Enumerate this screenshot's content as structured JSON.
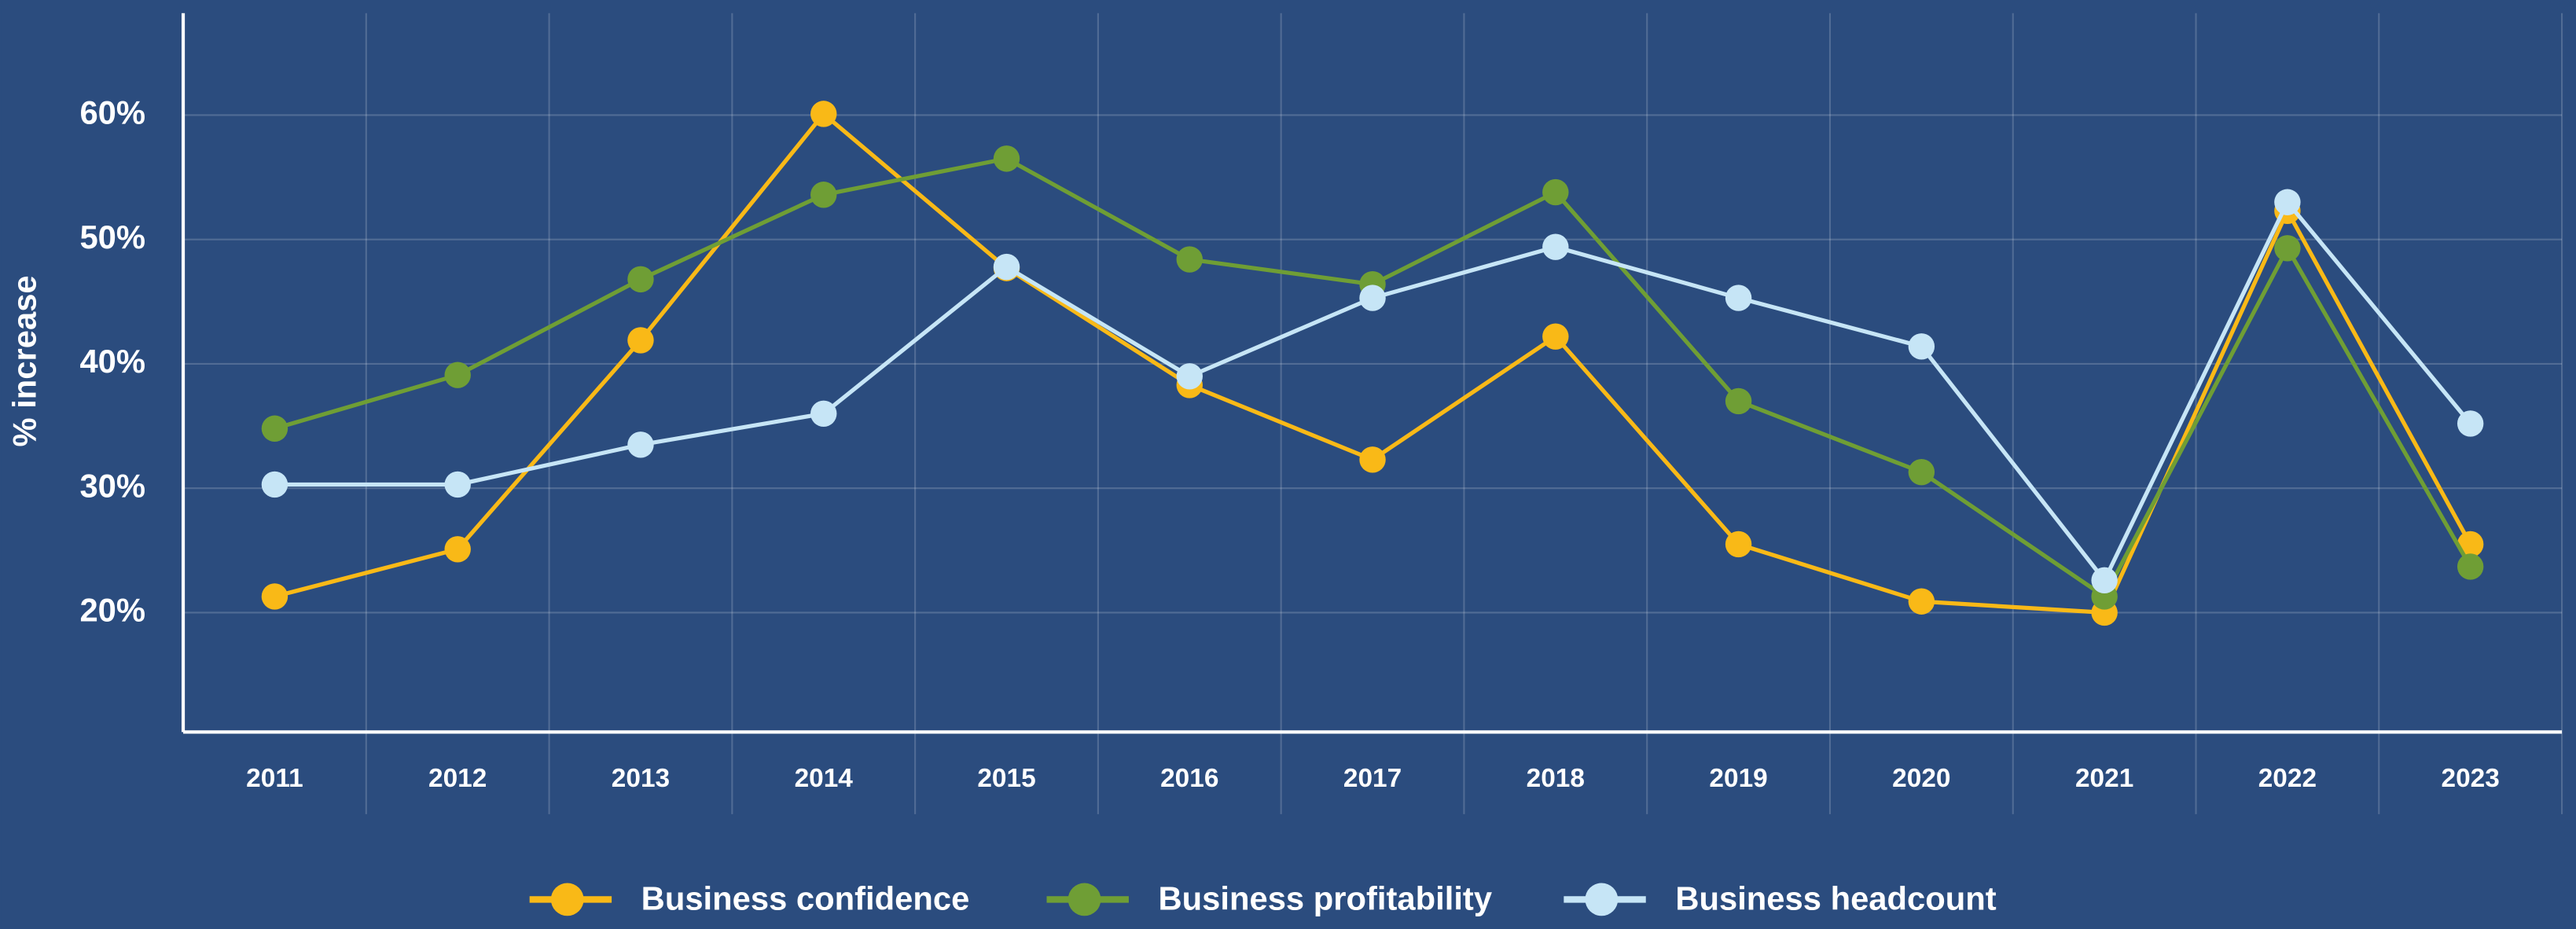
{
  "chart_data": {
    "type": "line",
    "y_label": "% increase",
    "categories": [
      "2011",
      "2012",
      "2013",
      "2014",
      "2015",
      "2016",
      "2017",
      "2018",
      "2019",
      "2020",
      "2021",
      "2022",
      "2023"
    ],
    "series": [
      {
        "name": "Business confidence",
        "color": "#f9b917",
        "values": [
          21.3,
          25.1,
          41.9,
          60.1,
          47.7,
          38.3,
          32.3,
          42.2,
          25.5,
          20.9,
          20.0,
          52.3,
          25.5
        ]
      },
      {
        "name": "Business profitability",
        "color": "#6f9e35",
        "values": [
          34.8,
          39.1,
          46.8,
          53.6,
          56.5,
          48.4,
          46.4,
          53.8,
          37.0,
          31.3,
          21.3,
          49.3,
          23.7
        ]
      },
      {
        "name": "Business headcount",
        "color": "#c6e5f6",
        "values": [
          30.3,
          30.3,
          33.5,
          36.0,
          47.8,
          39.0,
          45.3,
          49.4,
          45.3,
          41.4,
          22.6,
          53.0,
          35.2
        ]
      }
    ],
    "ylim": [
      10.4,
      68.2
    ],
    "yticks": [
      {
        "value": 20,
        "label": "20%"
      },
      {
        "value": 30,
        "label": "30%"
      },
      {
        "value": 40,
        "label": "40%"
      },
      {
        "value": 50,
        "label": "50%"
      },
      {
        "value": 60,
        "label": "60%"
      }
    ],
    "grid": true,
    "legend": "bottom"
  }
}
